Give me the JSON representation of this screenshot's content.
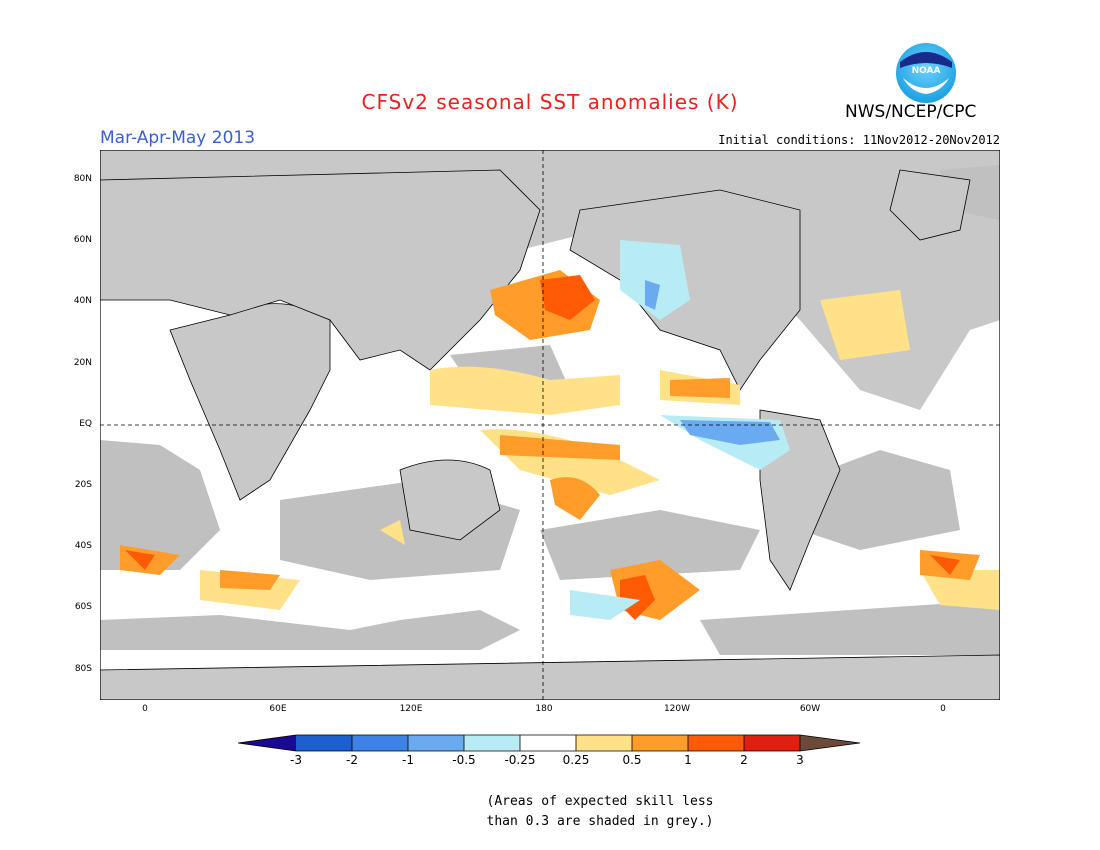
{
  "header": {
    "title": "CFSv2 seasonal SST anomalies (K)",
    "agency": "NWS/NCEP/CPC",
    "season": "Mar-Apr-May 2013",
    "initial_conditions": "Initial conditions: 11Nov2012-20Nov2012"
  },
  "logo": {
    "icon": "noaa-logo-icon",
    "text": "NOAA"
  },
  "map": {
    "projection": "cylindrical",
    "central_meridian": "180",
    "lat_ticks": [
      "80N",
      "60N",
      "40N",
      "20N",
      "EQ",
      "20S",
      "40S",
      "60S",
      "80S"
    ],
    "lon_ticks": [
      "0",
      "60E",
      "120E",
      "180",
      "120W",
      "60W",
      "0"
    ],
    "colors": {
      "land": "#c8c8c8",
      "masked_grey": "#c0c0c0",
      "ocean_neutral": "#ffffff"
    }
  },
  "colorbar": {
    "labels": [
      "-3",
      "-2",
      "-1",
      "-0.5",
      "-0.25",
      "0.25",
      "0.5",
      "1",
      "2",
      "3"
    ],
    "colors": [
      "#1a0a8f",
      "#1c5fd0",
      "#3d82e6",
      "#6aaaf0",
      "#b8ecf4",
      "#ffffff",
      "#ffe287",
      "#ff9c2a",
      "#ff5a05",
      "#e0200e",
      "#a30a05",
      "#6b4a3a"
    ]
  },
  "note": {
    "line1": "(Areas of expected skill less",
    "line2": "than 0.3 are shaded in grey.)"
  }
}
